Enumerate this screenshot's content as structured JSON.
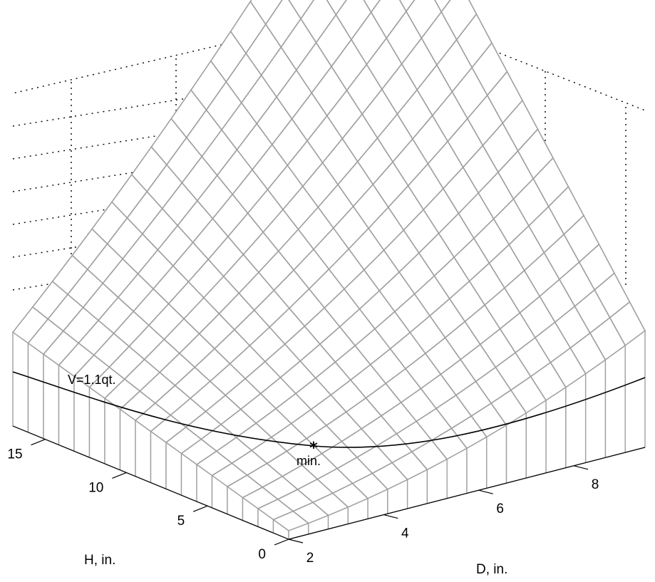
{
  "chart_data": {
    "type": "surface",
    "xlabel": "D, in.",
    "ylabel": "H, in.",
    "x_ticks": [
      "2",
      "4",
      "6",
      "8"
    ],
    "y_ticks": [
      "0",
      "5",
      "10",
      "15"
    ],
    "xlim": [
      2,
      9.5
    ],
    "ylim": [
      0,
      17
    ],
    "grid": true,
    "grid_style": "dotted",
    "surface": {
      "description_formula": "S = pi*D^2/2 + pi*D*H",
      "d_range": [
        2,
        9.5
      ],
      "h_range": [
        0,
        17
      ],
      "mesh_lines": 18,
      "edge_color": "#a0a0a0",
      "face_color": "#ffffff"
    },
    "constraint_curve": {
      "label": "V=1.1qt.",
      "color": "#000000"
    },
    "minimum_point": {
      "label": "min.",
      "marker": "*"
    }
  }
}
